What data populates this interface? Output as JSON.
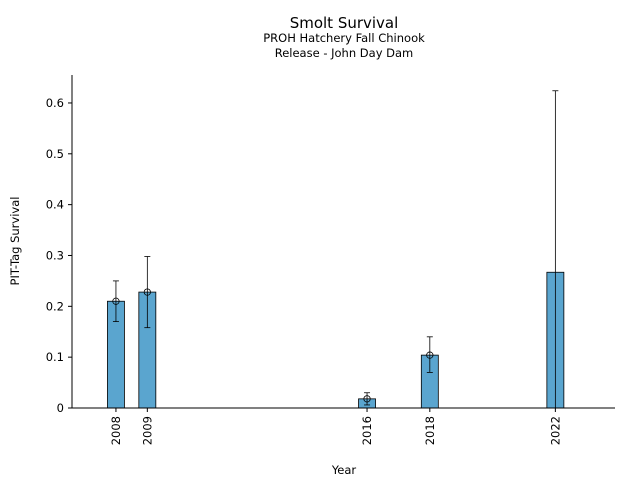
{
  "chart_data": {
    "type": "bar",
    "title": "Smolt Survival",
    "subtitle_lines": [
      "PROH Hatchery Fall Chinook",
      "Release - John Day Dam"
    ],
    "xlabel": "Year",
    "ylabel": "PIT-Tag Survival",
    "x_range": [
      2006.6,
      2023.9
    ],
    "ylim": [
      0,
      0.655
    ],
    "y_ticks": [
      "0",
      "0.1",
      "0.2",
      "0.3",
      "0.4",
      "0.5",
      "0.6"
    ],
    "bar_color": "#5aa5cf",
    "points": [
      {
        "label": "2008",
        "year": 2008,
        "value": 0.21,
        "lower": 0.17,
        "upper": 0.25,
        "marker": true
      },
      {
        "label": "2009",
        "year": 2009,
        "value": 0.228,
        "lower": 0.158,
        "upper": 0.298,
        "marker": true
      },
      {
        "label": "2016",
        "year": 2016,
        "value": 0.018,
        "lower": 0.006,
        "upper": 0.03,
        "marker": true
      },
      {
        "label": "2018",
        "year": 2018,
        "value": 0.104,
        "lower": 0.07,
        "upper": 0.14,
        "marker": true
      },
      {
        "label": "2022",
        "year": 2022,
        "value": 0.267,
        "lower": 0.0,
        "upper": 0.624,
        "marker": false
      }
    ]
  }
}
